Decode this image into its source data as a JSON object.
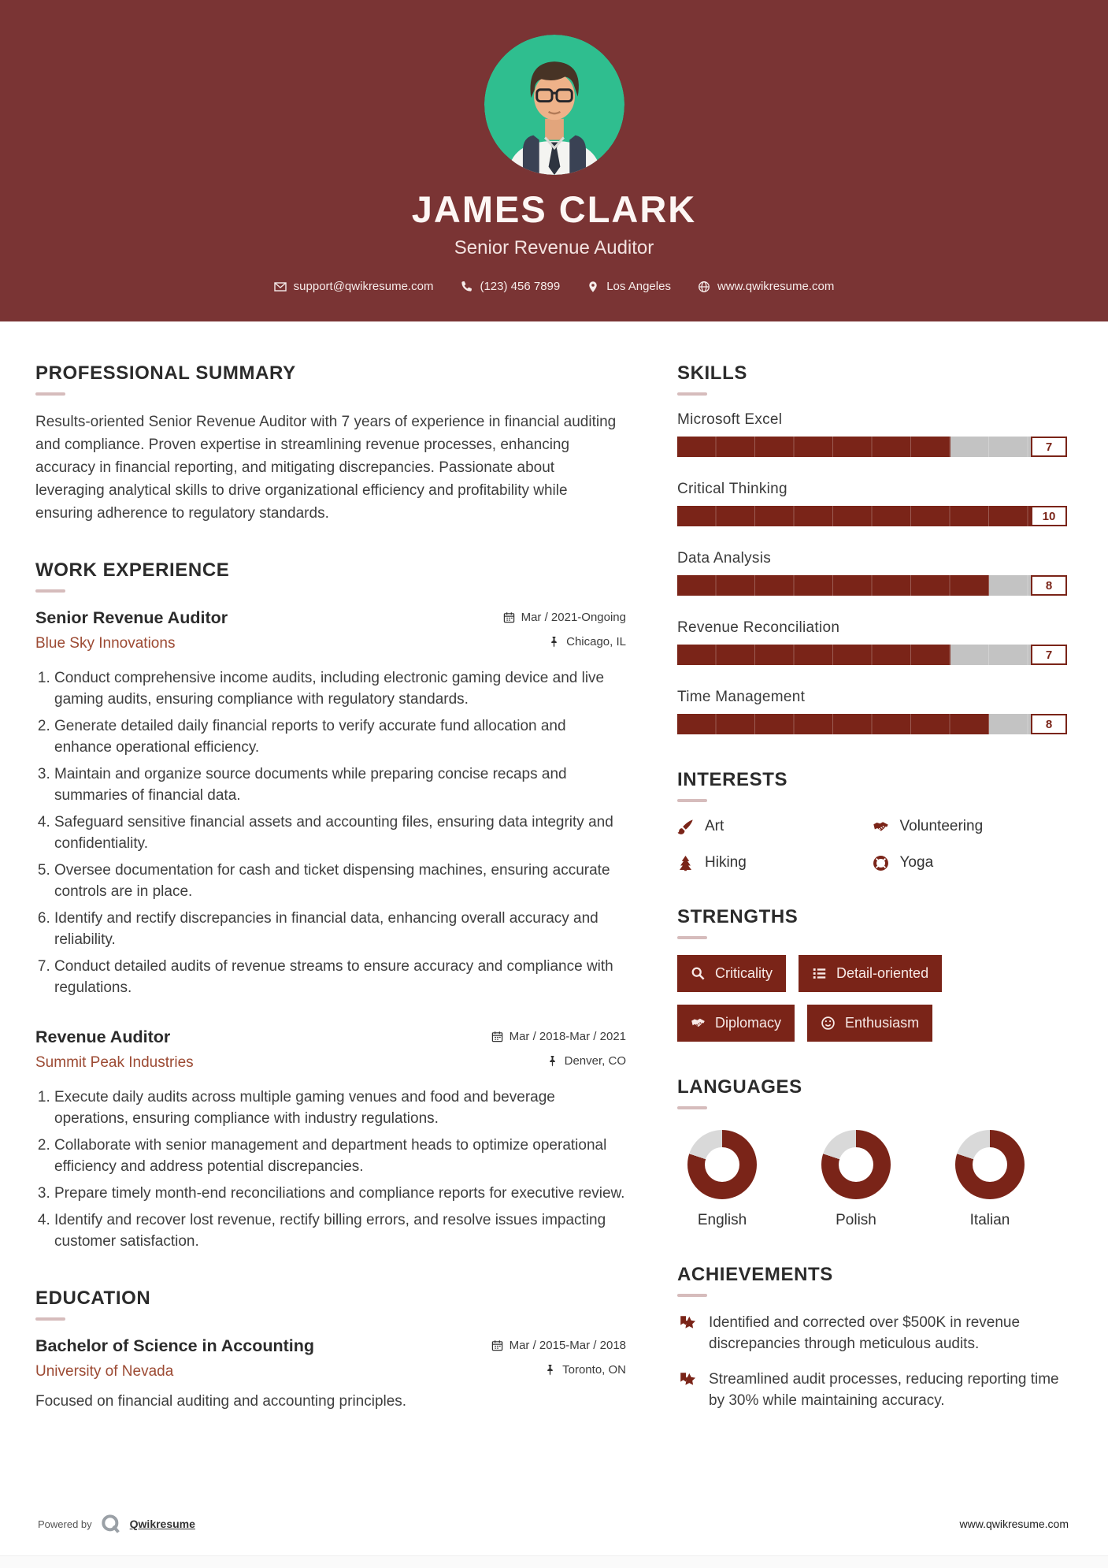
{
  "header": {
    "name": "JAMES CLARK",
    "title": "Senior Revenue Auditor",
    "contact": {
      "items": [
        {
          "icon": "envelope-icon",
          "label": "support@qwikresume.com"
        },
        {
          "icon": "phone-icon",
          "label": "(123) 456 7899"
        },
        {
          "icon": "pin-icon",
          "label": "Los Angeles"
        },
        {
          "icon": "globe-icon",
          "label": "www.qwikresume.com"
        }
      ]
    }
  },
  "sections": {
    "summary": {
      "heading": "PROFESSIONAL SUMMARY",
      "text": "Results-oriented Senior Revenue Auditor with 7 years of experience in financial auditing and compliance. Proven expertise in streamlining revenue processes, enhancing accuracy in financial reporting, and mitigating discrepancies. Passionate about leveraging analytical skills to drive organizational efficiency and profitability while ensuring adherence to regulatory standards."
    },
    "work": {
      "heading": "WORK EXPERIENCE",
      "jobs": [
        {
          "title": "Senior Revenue Auditor",
          "company": "Blue Sky Innovations",
          "dates": "Mar / 2021-Ongoing",
          "location": "Chicago, IL",
          "bullets": [
            "Conduct comprehensive income audits, including electronic gaming device and live gaming audits, ensuring compliance with regulatory standards.",
            "Generate detailed daily financial reports to verify accurate fund allocation and enhance operational efficiency.",
            "Maintain and organize source documents while preparing concise recaps and summaries of financial data.",
            "Safeguard sensitive financial assets and accounting files, ensuring data integrity and confidentiality.",
            "Oversee documentation for cash and ticket dispensing machines, ensuring accurate controls are in place.",
            "Identify and rectify discrepancies in financial data, enhancing overall accuracy and reliability.",
            "Conduct detailed audits of revenue streams to ensure accuracy and compliance with regulations."
          ]
        },
        {
          "title": "Revenue Auditor",
          "company": "Summit Peak Industries",
          "dates": "Mar / 2018-Mar / 2021",
          "location": "Denver, CO",
          "bullets": [
            "Execute daily audits across multiple gaming venues and food and beverage operations, ensuring compliance with industry regulations.",
            "Collaborate with senior management and department heads to optimize operational efficiency and address potential discrepancies.",
            "Prepare timely month-end reconciliations and compliance reports for executive review.",
            "Identify and recover lost revenue, rectify billing errors, and resolve issues impacting customer satisfaction."
          ]
        }
      ]
    },
    "education": {
      "heading": "EDUCATION",
      "degree": "Bachelor of Science in Accounting",
      "school": "University of Nevada",
      "dates": "Mar / 2015-Mar / 2018",
      "location": "Toronto, ON",
      "note": "Focused on financial auditing and accounting principles."
    },
    "skills": {
      "heading": "SKILLS",
      "max": 10,
      "items": [
        {
          "name": "Microsoft Excel",
          "level": 7
        },
        {
          "name": "Critical Thinking",
          "level": 10
        },
        {
          "name": "Data Analysis",
          "level": 8
        },
        {
          "name": "Revenue Reconciliation",
          "level": 7
        },
        {
          "name": "Time Management",
          "level": 8
        }
      ]
    },
    "interests": {
      "heading": "INTERESTS",
      "items": [
        {
          "icon": "paintbrush-icon",
          "label": "Art"
        },
        {
          "icon": "handshake-icon",
          "label": "Volunteering"
        },
        {
          "icon": "tree-icon",
          "label": "Hiking"
        },
        {
          "icon": "lifebuoy-icon",
          "label": "Yoga"
        }
      ]
    },
    "strengths": {
      "heading": "STRENGTHS",
      "items": [
        {
          "icon": "magnifier-icon",
          "label": "Criticality"
        },
        {
          "icon": "list-icon",
          "label": "Detail-oriented"
        },
        {
          "icon": "handshake-icon",
          "label": "Diplomacy"
        },
        {
          "icon": "smiley-icon",
          "label": "Enthusiasm"
        }
      ]
    },
    "languages": {
      "heading": "LANGUAGES",
      "items": [
        {
          "label": "English",
          "percent": 80
        },
        {
          "label": "Polish",
          "percent": 80
        },
        {
          "label": "Italian",
          "percent": 80
        }
      ]
    },
    "achievements": {
      "heading": "ACHIEVEMENTS",
      "items": [
        "Identified and corrected over $500K in revenue discrepancies through meticulous audits.",
        "Streamlined audit processes, reducing reporting time by 30% while maintaining accuracy."
      ]
    }
  },
  "footer": {
    "powered_by": "Powered by",
    "brand": "Qwikresume",
    "website": "www.qwikresume.com"
  },
  "colors": {
    "header_bg": "#7a3434",
    "accent": "#7a2418",
    "company": "#9c4a33",
    "photo_bg": "#2fbe8f",
    "bar_track": "#c3c3c3",
    "donut_rest": "#d9d9d9"
  }
}
